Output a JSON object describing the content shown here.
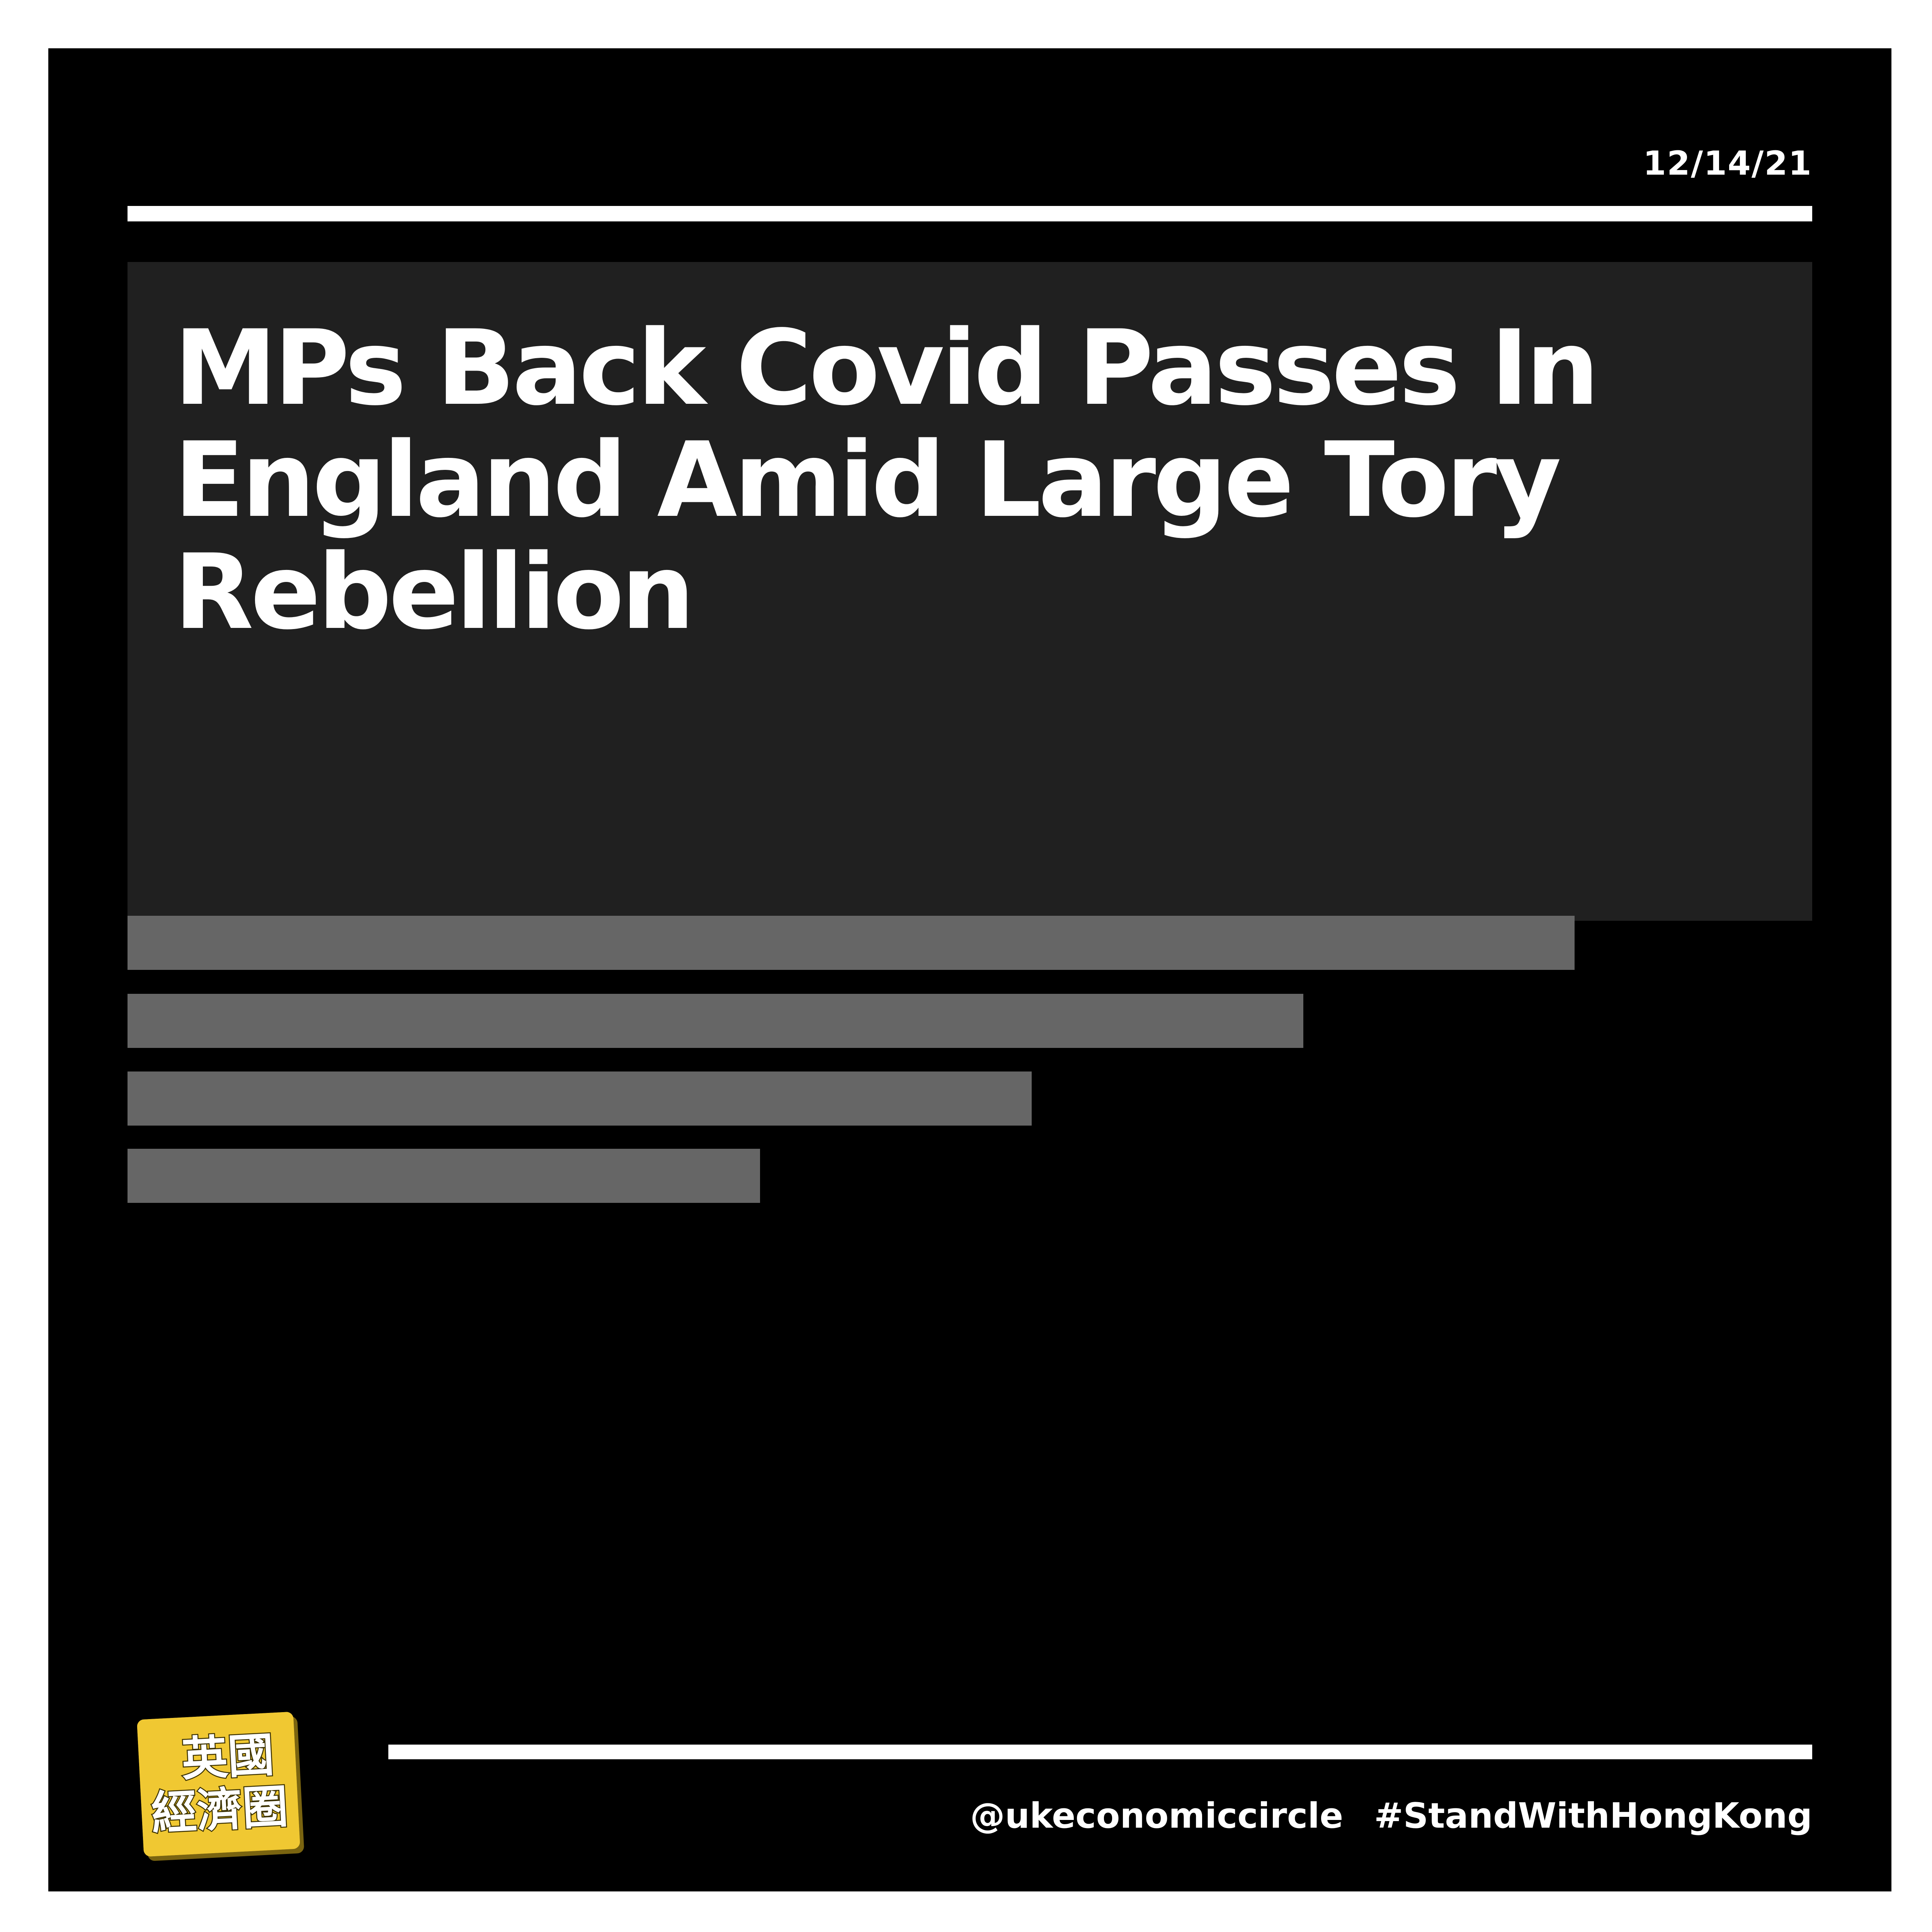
{
  "post": {
    "date": "12/14/21",
    "headline": "MPs Back Covid Passes In England Amid Large Tory Rebellion"
  },
  "logo": {
    "text_line1": "英國",
    "text_line2": "經濟圈",
    "background_color": "#f0c832"
  },
  "footer": {
    "handle": "@ukeconomiccircle",
    "hashtag": "#StandWithHongKong"
  },
  "colors": {
    "frame": "#000000",
    "headline_box": "#202020",
    "placeholder_bars": "#666666",
    "text": "#ffffff"
  }
}
